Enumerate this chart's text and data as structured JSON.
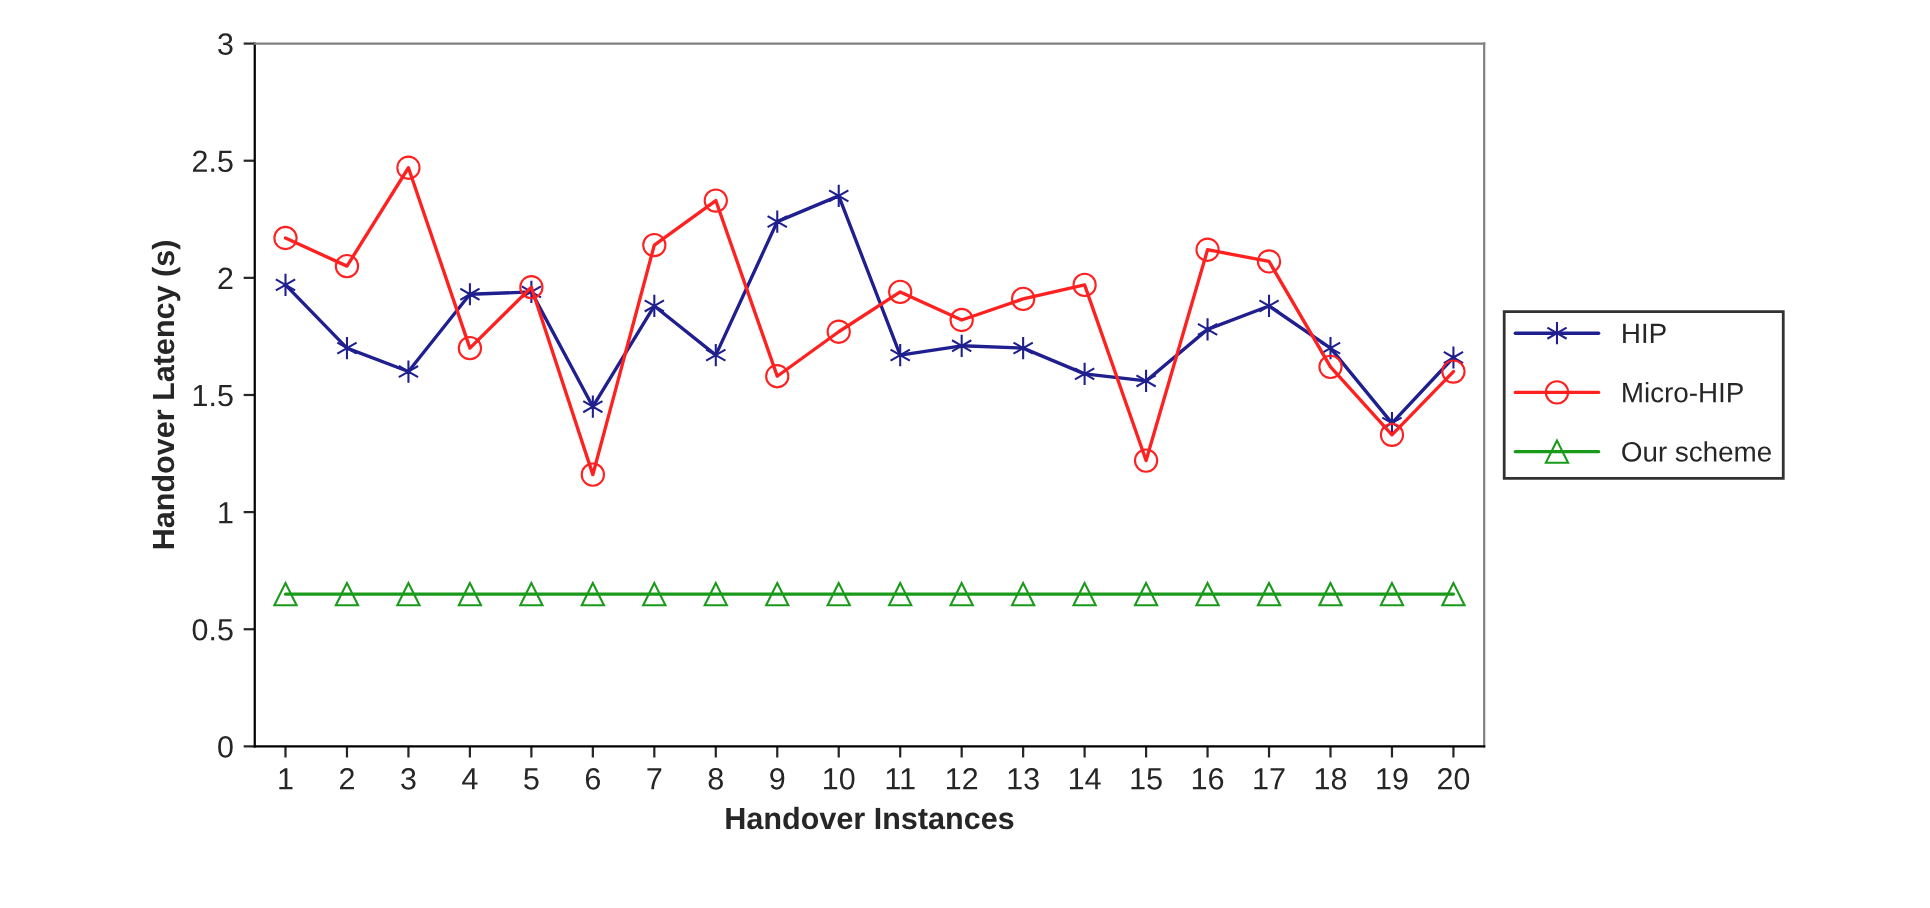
{
  "chart_data": {
    "type": "line",
    "xlabel": "Handover Instances",
    "ylabel": "Handover Latency (s)",
    "categories": [
      "1",
      "2",
      "3",
      "4",
      "5",
      "6",
      "7",
      "8",
      "9",
      "10",
      "11",
      "12",
      "13",
      "14",
      "15",
      "16",
      "17",
      "18",
      "19",
      "20"
    ],
    "series": [
      {
        "name": "HIP",
        "color": "#1f1f8f",
        "marker": "cross",
        "values": [
          1.97,
          1.7,
          1.6,
          1.93,
          1.94,
          1.45,
          1.88,
          1.67,
          2.24,
          2.35,
          1.67,
          1.71,
          1.7,
          1.59,
          1.56,
          1.78,
          1.88,
          1.7,
          1.38,
          1.66
        ]
      },
      {
        "name": "Micro-HIP",
        "color": "#ff2020",
        "marker": "circle",
        "values": [
          2.17,
          2.05,
          2.47,
          1.7,
          1.96,
          1.16,
          2.14,
          2.33,
          1.58,
          1.77,
          1.94,
          1.82,
          1.91,
          1.97,
          1.22,
          2.12,
          2.07,
          1.62,
          1.33,
          1.6
        ]
      },
      {
        "name": "Our scheme",
        "color": "#1a9a1a",
        "marker": "triangle",
        "values": [
          0.65,
          0.65,
          0.65,
          0.65,
          0.65,
          0.65,
          0.65,
          0.65,
          0.65,
          0.65,
          0.65,
          0.65,
          0.65,
          0.65,
          0.65,
          0.65,
          0.65,
          0.65,
          0.65,
          0.65
        ]
      }
    ],
    "ylim": [
      0,
      3
    ],
    "yticks": [
      0,
      0.5,
      1,
      1.5,
      2,
      2.5,
      3
    ],
    "grid": false,
    "legend": "right"
  }
}
